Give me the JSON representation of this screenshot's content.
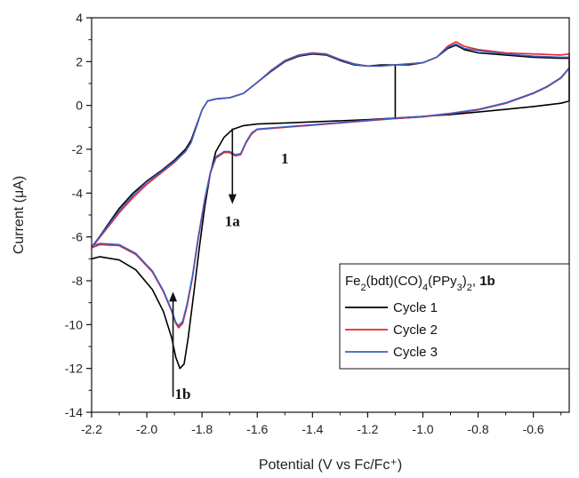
{
  "chart_data": {
    "type": "line",
    "xlabel": "Potential (V vs Fc/Fc⁺)",
    "ylabel": "Current (μA)",
    "xlim": [
      -2.2,
      -0.47
    ],
    "ylim": [
      -14,
      4
    ],
    "x_ticks": [
      "-2.2",
      "-2.0",
      "-1.8",
      "-1.6",
      "-1.4",
      "-1.2",
      "-1.0",
      "-0.8",
      "-0.6"
    ],
    "y_ticks": [
      "4",
      "2",
      "0",
      "-2",
      "-4",
      "-6",
      "-8",
      "-10",
      "-12",
      "-14"
    ],
    "legend": {
      "title_parts": [
        {
          "t": "Fe",
          "s": "n"
        },
        {
          "t": "2",
          "s": "sub"
        },
        {
          "t": "(bdt)(CO)",
          "s": "n"
        },
        {
          "t": "4",
          "s": "sub"
        },
        {
          "t": "(PPy",
          "s": "n"
        },
        {
          "t": "3",
          "s": "sub"
        },
        {
          "t": ")",
          "s": "n"
        },
        {
          "t": "2",
          "s": "sub"
        },
        {
          "t": ", ",
          "s": "n"
        },
        {
          "t": "1b",
          "s": "b"
        }
      ],
      "placement": "bottom-right"
    },
    "annotations": [
      {
        "text": "1",
        "x": -1.5,
        "y": -2.65
      },
      {
        "text": "1a",
        "x": -1.69,
        "y": -5.5
      },
      {
        "text": "1b",
        "x": -1.87,
        "y": -13.4
      }
    ],
    "arrows": [
      {
        "name": "arrow-1a",
        "from": [
          -1.69,
          -1.05
        ],
        "to": [
          -1.69,
          -4.5
        ]
      },
      {
        "name": "arrow-1b",
        "from": [
          -1.905,
          -13.3
        ],
        "to": [
          -1.905,
          -8.5
        ]
      }
    ],
    "series": [
      {
        "name": "Cycle 1",
        "color": "#000000",
        "points": [
          [
            -2.2,
            -7.0
          ],
          [
            -2.17,
            -6.9
          ],
          [
            -2.1,
            -7.05
          ],
          [
            -2.04,
            -7.5
          ],
          [
            -1.98,
            -8.4
          ],
          [
            -1.94,
            -9.4
          ],
          [
            -1.91,
            -10.6
          ],
          [
            -1.895,
            -11.5
          ],
          [
            -1.88,
            -12.0
          ],
          [
            -1.865,
            -11.8
          ],
          [
            -1.85,
            -10.6
          ],
          [
            -1.83,
            -8.6
          ],
          [
            -1.81,
            -6.5
          ],
          [
            -1.79,
            -4.6
          ],
          [
            -1.77,
            -3.1
          ],
          [
            -1.75,
            -2.1
          ],
          [
            -1.72,
            -1.45
          ],
          [
            -1.69,
            -1.1
          ],
          [
            -1.65,
            -0.92
          ],
          [
            -1.6,
            -0.85
          ],
          [
            -1.5,
            -0.8
          ],
          [
            -1.4,
            -0.75
          ],
          [
            -1.2,
            -0.65
          ],
          [
            -1.0,
            -0.5
          ],
          [
            -0.9,
            -0.42
          ],
          [
            -0.8,
            -0.3
          ],
          [
            -0.7,
            -0.18
          ],
          [
            -0.6,
            -0.05
          ],
          [
            -0.5,
            0.1
          ],
          [
            -0.47,
            0.2
          ],
          [
            -0.47,
            1.7
          ],
          [
            -0.5,
            1.25
          ],
          [
            -0.55,
            0.85
          ],
          [
            -0.6,
            0.55
          ],
          [
            -0.7,
            0.1
          ],
          [
            -0.8,
            -0.2
          ],
          [
            -0.9,
            -0.38
          ],
          [
            -1.0,
            -0.52
          ],
          [
            -1.1,
            -0.6
          ],
          [
            -1.1,
            1.85
          ],
          [
            -1.05,
            1.85
          ],
          [
            -1.0,
            1.95
          ],
          [
            -0.95,
            2.2
          ],
          [
            -0.91,
            2.6
          ],
          [
            -0.88,
            2.75
          ],
          [
            -0.85,
            2.55
          ],
          [
            -0.8,
            2.4
          ],
          [
            -0.7,
            2.3
          ],
          [
            -0.6,
            2.2
          ],
          [
            -0.5,
            2.15
          ],
          [
            -0.47,
            2.15
          ],
          [
            -0.47,
            2.15
          ],
          [
            -0.5,
            2.15
          ],
          [
            -0.6,
            2.2
          ],
          [
            -0.7,
            2.3
          ],
          [
            -0.8,
            2.4
          ],
          [
            -0.85,
            2.55
          ],
          [
            -0.88,
            2.75
          ],
          [
            -0.91,
            2.6
          ],
          [
            -0.95,
            2.2
          ],
          [
            -1.0,
            1.95
          ],
          [
            -1.05,
            1.85
          ],
          [
            -1.1,
            1.85
          ],
          [
            -1.15,
            1.85
          ],
          [
            -1.2,
            1.8
          ],
          [
            -1.25,
            1.85
          ],
          [
            -1.3,
            2.05
          ],
          [
            -1.35,
            2.3
          ],
          [
            -1.4,
            2.35
          ],
          [
            -1.45,
            2.25
          ],
          [
            -1.5,
            2.0
          ],
          [
            -1.55,
            1.55
          ],
          [
            -1.6,
            1.05
          ],
          [
            -1.65,
            0.55
          ],
          [
            -1.7,
            0.35
          ],
          [
            -1.75,
            0.3
          ],
          [
            -1.78,
            0.2
          ],
          [
            -1.8,
            -0.2
          ],
          [
            -1.82,
            -0.9
          ],
          [
            -1.84,
            -1.6
          ],
          [
            -1.86,
            -2.0
          ],
          [
            -1.9,
            -2.5
          ],
          [
            -1.95,
            -3.0
          ],
          [
            -2.0,
            -3.45
          ],
          [
            -2.05,
            -4.0
          ],
          [
            -2.1,
            -4.7
          ],
          [
            -2.15,
            -5.6
          ],
          [
            -2.2,
            -6.5
          ]
        ]
      },
      {
        "name": "Cycle 2",
        "color": "#e8262b",
        "points": [
          [
            -2.2,
            -6.5
          ],
          [
            -2.17,
            -6.35
          ],
          [
            -2.1,
            -6.4
          ],
          [
            -2.04,
            -6.8
          ],
          [
            -1.98,
            -7.6
          ],
          [
            -1.94,
            -8.5
          ],
          [
            -1.91,
            -9.4
          ],
          [
            -1.895,
            -9.95
          ],
          [
            -1.885,
            -10.15
          ],
          [
            -1.87,
            -9.95
          ],
          [
            -1.855,
            -9.2
          ],
          [
            -1.835,
            -7.9
          ],
          [
            -1.815,
            -6.2
          ],
          [
            -1.79,
            -4.3
          ],
          [
            -1.77,
            -3.1
          ],
          [
            -1.75,
            -2.4
          ],
          [
            -1.72,
            -2.15
          ],
          [
            -1.7,
            -2.15
          ],
          [
            -1.68,
            -2.3
          ],
          [
            -1.66,
            -2.25
          ],
          [
            -1.64,
            -1.7
          ],
          [
            -1.62,
            -1.3
          ],
          [
            -1.6,
            -1.1
          ],
          [
            -1.55,
            -1.05
          ],
          [
            -1.5,
            -1.0
          ],
          [
            -1.4,
            -0.9
          ],
          [
            -1.3,
            -0.8
          ],
          [
            -1.2,
            -0.7
          ],
          [
            -1.1,
            -0.6
          ],
          [
            -1.0,
            -0.52
          ],
          [
            -0.9,
            -0.38
          ],
          [
            -0.8,
            -0.2
          ],
          [
            -0.7,
            0.1
          ],
          [
            -0.6,
            0.55
          ],
          [
            -0.55,
            0.85
          ],
          [
            -0.5,
            1.25
          ],
          [
            -0.47,
            1.7
          ],
          [
            -0.47,
            2.35
          ],
          [
            -0.5,
            2.3
          ],
          [
            -0.6,
            2.35
          ],
          [
            -0.7,
            2.4
          ],
          [
            -0.8,
            2.55
          ],
          [
            -0.85,
            2.7
          ],
          [
            -0.88,
            2.9
          ],
          [
            -0.91,
            2.7
          ],
          [
            -0.95,
            2.2
          ],
          [
            -1.0,
            1.95
          ],
          [
            -1.05,
            1.9
          ],
          [
            -1.1,
            1.85
          ],
          [
            -1.15,
            1.8
          ],
          [
            -1.2,
            1.8
          ],
          [
            -1.25,
            1.9
          ],
          [
            -1.3,
            2.1
          ],
          [
            -1.35,
            2.35
          ],
          [
            -1.4,
            2.4
          ],
          [
            -1.45,
            2.3
          ],
          [
            -1.5,
            2.05
          ],
          [
            -1.55,
            1.6
          ],
          [
            -1.6,
            1.05
          ],
          [
            -1.65,
            0.55
          ],
          [
            -1.7,
            0.35
          ],
          [
            -1.75,
            0.3
          ],
          [
            -1.78,
            0.2
          ],
          [
            -1.8,
            -0.2
          ],
          [
            -1.82,
            -0.95
          ],
          [
            -1.84,
            -1.7
          ],
          [
            -1.86,
            -2.1
          ],
          [
            -1.9,
            -2.6
          ],
          [
            -1.95,
            -3.1
          ],
          [
            -2.0,
            -3.6
          ],
          [
            -2.05,
            -4.2
          ],
          [
            -2.1,
            -4.9
          ],
          [
            -2.15,
            -5.7
          ],
          [
            -2.2,
            -6.5
          ]
        ]
      },
      {
        "name": "Cycle 3",
        "color": "#3a5fc8",
        "points": [
          [
            -2.2,
            -6.4
          ],
          [
            -2.17,
            -6.3
          ],
          [
            -2.1,
            -6.35
          ],
          [
            -2.04,
            -6.75
          ],
          [
            -1.98,
            -7.55
          ],
          [
            -1.94,
            -8.45
          ],
          [
            -1.91,
            -9.35
          ],
          [
            -1.895,
            -9.9
          ],
          [
            -1.885,
            -10.05
          ],
          [
            -1.87,
            -9.85
          ],
          [
            -1.855,
            -9.1
          ],
          [
            -1.835,
            -7.8
          ],
          [
            -1.815,
            -6.1
          ],
          [
            -1.79,
            -4.25
          ],
          [
            -1.77,
            -3.05
          ],
          [
            -1.75,
            -2.35
          ],
          [
            -1.72,
            -2.1
          ],
          [
            -1.7,
            -2.1
          ],
          [
            -1.68,
            -2.25
          ],
          [
            -1.66,
            -2.2
          ],
          [
            -1.64,
            -1.65
          ],
          [
            -1.62,
            -1.25
          ],
          [
            -1.6,
            -1.08
          ],
          [
            -1.55,
            -1.03
          ],
          [
            -1.5,
            -0.98
          ],
          [
            -1.4,
            -0.88
          ],
          [
            -1.3,
            -0.78
          ],
          [
            -1.2,
            -0.68
          ],
          [
            -1.1,
            -0.58
          ],
          [
            -1.0,
            -0.5
          ],
          [
            -0.9,
            -0.36
          ],
          [
            -0.8,
            -0.18
          ],
          [
            -0.7,
            0.12
          ],
          [
            -0.6,
            0.57
          ],
          [
            -0.55,
            0.87
          ],
          [
            -0.5,
            1.27
          ],
          [
            -0.47,
            1.72
          ],
          [
            -0.47,
            2.2
          ],
          [
            -0.5,
            2.2
          ],
          [
            -0.6,
            2.25
          ],
          [
            -0.7,
            2.35
          ],
          [
            -0.8,
            2.5
          ],
          [
            -0.85,
            2.6
          ],
          [
            -0.88,
            2.8
          ],
          [
            -0.91,
            2.65
          ],
          [
            -0.95,
            2.2
          ],
          [
            -1.0,
            1.95
          ],
          [
            -1.05,
            1.9
          ],
          [
            -1.1,
            1.85
          ],
          [
            -1.15,
            1.8
          ],
          [
            -1.2,
            1.8
          ],
          [
            -1.25,
            1.88
          ],
          [
            -1.3,
            2.08
          ],
          [
            -1.35,
            2.33
          ],
          [
            -1.4,
            2.38
          ],
          [
            -1.45,
            2.28
          ],
          [
            -1.5,
            2.03
          ],
          [
            -1.55,
            1.58
          ],
          [
            -1.6,
            1.05
          ],
          [
            -1.65,
            0.55
          ],
          [
            -1.7,
            0.35
          ],
          [
            -1.75,
            0.3
          ],
          [
            -1.78,
            0.2
          ],
          [
            -1.8,
            -0.2
          ],
          [
            -1.82,
            -0.95
          ],
          [
            -1.84,
            -1.7
          ],
          [
            -1.86,
            -2.1
          ],
          [
            -1.9,
            -2.55
          ],
          [
            -1.95,
            -3.05
          ],
          [
            -2.0,
            -3.5
          ],
          [
            -2.05,
            -4.1
          ],
          [
            -2.1,
            -4.8
          ],
          [
            -2.15,
            -5.65
          ],
          [
            -2.2,
            -6.45
          ]
        ]
      }
    ]
  }
}
